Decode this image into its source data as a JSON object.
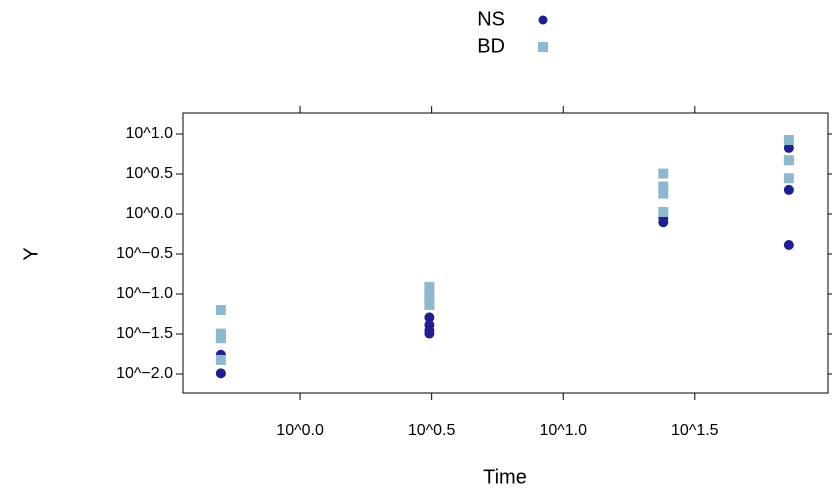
{
  "chart_data": {
    "type": "scatter",
    "xlabel": "Time",
    "ylabel": "Y",
    "xlog": true,
    "ylog": true,
    "xlim": [
      0.359,
      101.4
    ],
    "ylim": [
      0.00579,
      18.3
    ],
    "xticks": [
      {
        "value": 1,
        "label": "10^0.0"
      },
      {
        "value": 3.162,
        "label": "10^0.5"
      },
      {
        "value": 10,
        "label": "10^1.0"
      },
      {
        "value": 31.62,
        "label": "10^1.5"
      }
    ],
    "yticks": [
      {
        "value": 10,
        "label": "10^1.0"
      },
      {
        "value": 3.162,
        "label": "10^0.5"
      },
      {
        "value": 1,
        "label": "10^0.0"
      },
      {
        "value": 0.3162,
        "label": "10^−0.5"
      },
      {
        "value": 0.1,
        "label": "10^−1.0"
      },
      {
        "value": 0.03162,
        "label": "10^−1.5"
      },
      {
        "value": 0.01,
        "label": "10^−2.0"
      }
    ],
    "legend_position": "top",
    "series": [
      {
        "name": "NS",
        "color": "#1f1f8f",
        "marker": "circle",
        "x": [
          0.5,
          0.5,
          3.1,
          3.1,
          3.1,
          3.1,
          24,
          24,
          72,
          72,
          72,
          72
        ],
        "values": [
          0.0174,
          0.0102,
          0.051,
          0.041,
          0.035,
          0.032,
          0.79,
          0.89,
          6.7,
          4.7,
          2.0,
          0.41
        ]
      },
      {
        "name": "BD",
        "color": "#8fb8cf",
        "marker": "square",
        "x": [
          0.5,
          0.5,
          0.5,
          0.5,
          3.1,
          3.1,
          3.1,
          3.1,
          24,
          24,
          24,
          24,
          72,
          72,
          72
        ],
        "values": [
          0.063,
          0.032,
          0.028,
          0.015,
          0.123,
          0.1,
          0.087,
          0.073,
          3.2,
          2.2,
          1.8,
          1.06,
          8.4,
          4.7,
          2.8
        ]
      }
    ]
  }
}
